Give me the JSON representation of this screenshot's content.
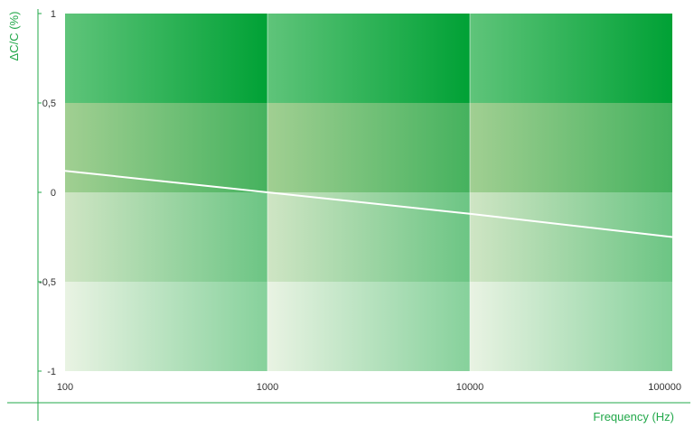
{
  "chart_data": {
    "type": "line",
    "title": "",
    "xlabel": "Frequency (Hz)",
    "ylabel": "ΔC/C (%)",
    "x_scale": "log",
    "xlim": [
      100,
      100000
    ],
    "ylim": [
      -1,
      1
    ],
    "x_ticks": [
      "100",
      "1000",
      "10000",
      "100000"
    ],
    "y_ticks": [
      "1",
      "0,5",
      "0",
      "-0,5",
      "-1"
    ],
    "series": [
      {
        "x": [
          100,
          1000,
          10000,
          100000
        ],
        "values": [
          0.12,
          0.0,
          -0.12,
          -0.25
        ]
      }
    ],
    "grid": true,
    "colors": {
      "accent": "#22a84a",
      "line": "#ffffff",
      "band_dark": "#00a135",
      "band_light": "#e9f3e3"
    }
  }
}
